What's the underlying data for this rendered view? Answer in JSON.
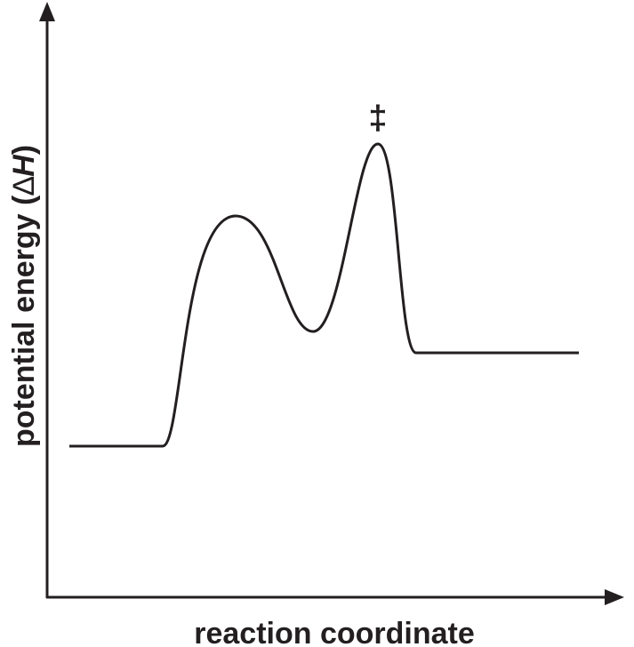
{
  "axes": {
    "y_label": {
      "prefix": "potential energy (",
      "symbol": "∆",
      "variable": "H",
      "suffix": ")"
    },
    "x_label": "reaction coordinate"
  },
  "annotation": "‡"
}
